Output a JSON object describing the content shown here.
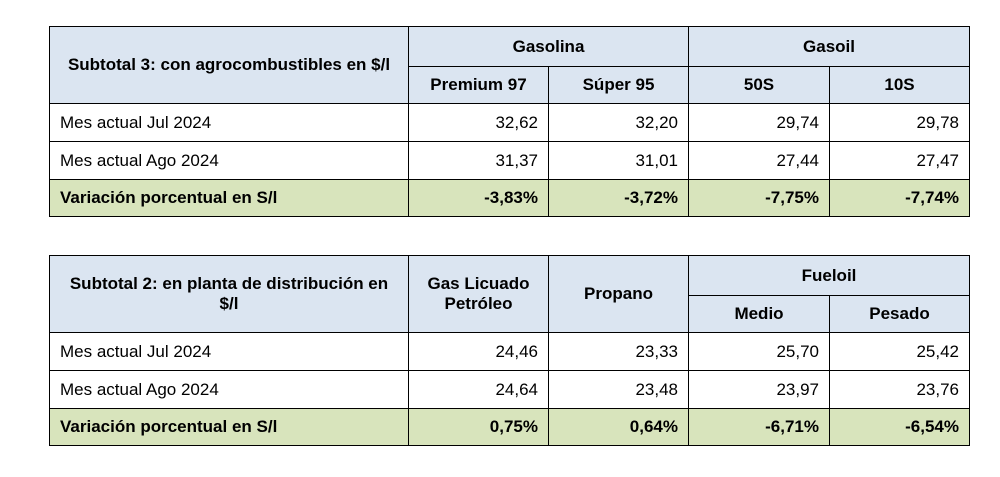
{
  "table1": {
    "title": "Subtotal 3: con agrocombustibles en $/l",
    "group_gasolina": "Gasolina",
    "group_gasoil": "Gasoil",
    "columns": [
      "Premium 97",
      "Súper 95",
      "50S",
      "10S"
    ],
    "rows": [
      {
        "label": "Mes actual Jul 2024",
        "values": [
          "32,62",
          "32,20",
          "29,74",
          "29,78"
        ]
      },
      {
        "label": "Mes actual Ago 2024",
        "values": [
          "31,37",
          "31,01",
          "27,44",
          "27,47"
        ]
      }
    ],
    "variation": {
      "label": "Variación porcentual en S/l",
      "values": [
        "-3,83%",
        "-3,72%",
        "-7,75%",
        "-7,74%"
      ]
    }
  },
  "table2": {
    "title": "Subtotal 2: en planta de distribución en $/l",
    "col_glp": "Gas Licuado Petróleo",
    "col_propano": "Propano",
    "group_fueloil": "Fueloil",
    "columns_fueloil": [
      "Medio",
      "Pesado"
    ],
    "rows": [
      {
        "label": "Mes actual Jul 2024",
        "values": [
          "24,46",
          "23,33",
          "25,70",
          "25,42"
        ]
      },
      {
        "label": "Mes actual Ago 2024",
        "values": [
          "24,64",
          "23,48",
          "23,97",
          "23,76"
        ]
      }
    ],
    "variation": {
      "label": "Variación porcentual en S/l",
      "values": [
        "0,75%",
        "0,64%",
        "-6,71%",
        "-6,54%"
      ]
    }
  }
}
